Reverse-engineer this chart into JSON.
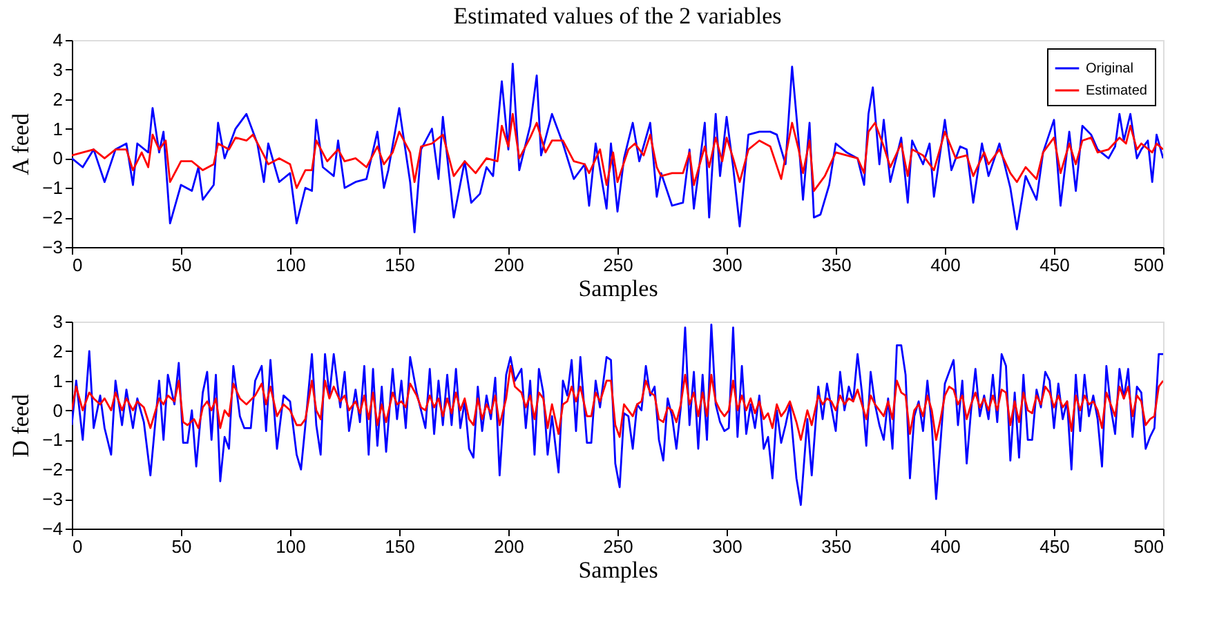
{
  "chart_data": [
    {
      "type": "line",
      "title": "Estimated values of the 2 variables",
      "xlabel": "Samples",
      "ylabel": "A feed",
      "xlim": [
        0,
        500
      ],
      "xticks": [
        0,
        50,
        100,
        150,
        200,
        250,
        300,
        350,
        400,
        450,
        500
      ],
      "ylim": [
        -3,
        4
      ],
      "yticks": [
        -3,
        -2,
        -1,
        0,
        1,
        2,
        3,
        4
      ],
      "grid": false,
      "legend": "top right",
      "marker": "none",
      "line_style": "solid",
      "series": [
        {
          "name": "Original",
          "color": "#0000ff",
          "x": [
            0,
            5,
            10,
            15,
            20,
            25,
            28,
            30,
            35,
            37,
            40,
            42,
            45,
            50,
            55,
            58,
            60,
            65,
            67,
            70,
            75,
            80,
            85,
            88,
            90,
            95,
            100,
            103,
            107,
            110,
            112,
            115,
            120,
            122,
            125,
            130,
            135,
            140,
            143,
            145,
            150,
            155,
            157,
            160,
            165,
            168,
            170,
            175,
            180,
            183,
            187,
            190,
            193,
            197,
            200,
            202,
            205,
            210,
            213,
            215,
            220,
            225,
            230,
            235,
            237,
            240,
            245,
            247,
            250,
            253,
            257,
            260,
            265,
            268,
            270,
            275,
            280,
            283,
            285,
            290,
            292,
            295,
            297,
            300,
            303,
            306,
            310,
            315,
            320,
            323,
            327,
            330,
            333,
            335,
            338,
            340,
            343,
            347,
            350,
            355,
            360,
            363,
            365,
            367,
            370,
            372,
            375,
            380,
            383,
            385,
            390,
            393,
            395,
            400,
            403,
            407,
            410,
            413,
            417,
            420,
            425,
            430,
            433,
            437,
            442,
            445,
            450,
            453,
            457,
            460,
            463,
            467,
            470,
            475,
            478,
            480,
            482,
            485,
            488,
            490,
            493,
            495,
            497,
            500
          ],
          "values": [
            0,
            -0.3,
            0.3,
            -0.8,
            0.3,
            0.5,
            -0.9,
            0.5,
            0.2,
            1.7,
            0.2,
            0.9,
            -2.2,
            -0.9,
            -1.1,
            -0.3,
            -1.4,
            -0.9,
            1.2,
            0.0,
            1.0,
            1.5,
            0.5,
            -0.8,
            0.5,
            -0.8,
            -0.5,
            -2.2,
            -1.0,
            -1.1,
            1.3,
            -0.3,
            -0.6,
            0.6,
            -1.0,
            -0.8,
            -0.7,
            0.9,
            -1.0,
            -0.4,
            1.7,
            -0.8,
            -2.5,
            0.3,
            1.0,
            -0.7,
            1.4,
            -2.0,
            -0.1,
            -1.5,
            -1.2,
            -0.3,
            -0.6,
            2.6,
            0.3,
            3.2,
            -0.4,
            1.1,
            2.8,
            0.1,
            1.5,
            0.5,
            -0.7,
            -0.2,
            -1.6,
            0.5,
            -1.7,
            0.5,
            -1.8,
            0.0,
            1.2,
            -0.1,
            1.2,
            -1.3,
            -0.5,
            -1.6,
            -1.5,
            0.3,
            -1.7,
            1.2,
            -2.0,
            1.5,
            -0.6,
            1.4,
            -0.3,
            -2.3,
            0.8,
            0.9,
            0.9,
            0.8,
            -0.2,
            3.1,
            0.6,
            -1.4,
            1.2,
            -2.0,
            -1.9,
            -0.9,
            0.5,
            0.2,
            0.0,
            -0.9,
            1.5,
            2.4,
            -0.2,
            1.3,
            -0.8,
            0.7,
            -1.5,
            0.6,
            -0.2,
            0.5,
            -1.3,
            1.3,
            -0.4,
            0.4,
            0.3,
            -1.5,
            0.5,
            -0.6,
            0.5,
            -1.0,
            -2.4,
            -0.6,
            -1.4,
            0.2,
            1.3,
            -1.6,
            0.9,
            -1.1,
            1.1,
            0.8,
            0.3,
            0.0,
            0.4,
            1.5,
            0.6,
            1.5,
            0.0,
            0.3,
            0.6,
            -0.8,
            0.8,
            0.0
          ]
        },
        {
          "name": "Estimated",
          "color": "#ff0000",
          "x": [
            0,
            5,
            10,
            15,
            20,
            25,
            28,
            32,
            35,
            37,
            40,
            43,
            45,
            50,
            55,
            60,
            65,
            67,
            72,
            75,
            80,
            83,
            88,
            90,
            95,
            100,
            103,
            107,
            110,
            112,
            117,
            122,
            125,
            130,
            135,
            140,
            143,
            147,
            150,
            155,
            157,
            160,
            165,
            170,
            175,
            180,
            185,
            190,
            195,
            197,
            200,
            202,
            205,
            210,
            213,
            217,
            220,
            225,
            230,
            235,
            237,
            242,
            245,
            248,
            250,
            255,
            258,
            262,
            265,
            268,
            270,
            275,
            280,
            283,
            285,
            290,
            292,
            295,
            298,
            300,
            303,
            306,
            310,
            315,
            320,
            325,
            330,
            333,
            335,
            338,
            340,
            345,
            350,
            355,
            360,
            363,
            365,
            368,
            372,
            375,
            380,
            383,
            385,
            390,
            395,
            400,
            405,
            410,
            413,
            418,
            420,
            425,
            430,
            433,
            437,
            442,
            445,
            450,
            453,
            457,
            460,
            463,
            467,
            470,
            475,
            480,
            483,
            485,
            488,
            490,
            495,
            497,
            500
          ],
          "values": [
            0.1,
            0.2,
            0.3,
            0.0,
            0.3,
            0.3,
            -0.4,
            0.2,
            -0.3,
            0.8,
            0.3,
            0.6,
            -0.8,
            -0.1,
            -0.1,
            -0.4,
            -0.2,
            0.5,
            0.3,
            0.7,
            0.6,
            0.8,
            0.1,
            -0.2,
            0.0,
            -0.2,
            -1.0,
            -0.4,
            -0.4,
            0.6,
            -0.1,
            0.3,
            -0.1,
            0.0,
            -0.3,
            0.4,
            -0.2,
            0.2,
            0.9,
            0.2,
            -0.8,
            0.4,
            0.5,
            0.8,
            -0.6,
            -0.1,
            -0.5,
            0.0,
            -0.1,
            1.1,
            0.4,
            1.5,
            0.0,
            0.7,
            1.2,
            0.2,
            0.6,
            0.6,
            -0.1,
            -0.2,
            -0.5,
            0.3,
            -0.9,
            0.2,
            -0.8,
            0.3,
            0.5,
            0.1,
            0.8,
            -0.3,
            -0.6,
            -0.5,
            -0.5,
            0.2,
            -0.9,
            0.4,
            -0.3,
            0.7,
            -0.1,
            0.7,
            0.0,
            -0.8,
            0.3,
            0.6,
            0.4,
            -0.7,
            1.2,
            0.3,
            -0.5,
            0.6,
            -1.1,
            -0.6,
            0.2,
            0.1,
            0.0,
            -0.5,
            0.9,
            1.2,
            0.4,
            -0.3,
            0.5,
            -0.6,
            0.3,
            0.1,
            -0.4,
            0.9,
            0.0,
            0.1,
            -0.6,
            0.2,
            -0.2,
            0.3,
            -0.5,
            -0.8,
            -0.3,
            -0.7,
            0.2,
            0.7,
            -0.5,
            0.5,
            -0.2,
            0.6,
            0.7,
            0.2,
            0.3,
            0.7,
            0.5,
            1.1,
            0.3,
            0.5,
            0.2,
            0.5,
            0.3
          ]
        }
      ]
    },
    {
      "type": "line",
      "xlabel": "Samples",
      "ylabel": "D feed",
      "xlim": [
        0,
        500
      ],
      "xticks": [
        0,
        50,
        100,
        150,
        200,
        250,
        300,
        350,
        400,
        450,
        500
      ],
      "ylim": [
        -4,
        3
      ],
      "yticks": [
        -4,
        -3,
        -2,
        -1,
        0,
        1,
        2,
        3
      ],
      "grid": false,
      "legend": false,
      "marker": "none",
      "line_style": "solid",
      "series": [
        {
          "color": "#0000ff",
          "x": [
            0,
            2,
            5,
            8,
            10,
            13,
            15,
            18,
            20,
            23,
            25,
            28,
            30,
            33,
            36,
            40,
            42,
            44,
            47,
            49,
            51,
            53,
            55,
            57,
            60,
            62,
            64,
            66,
            68,
            70,
            72,
            74,
            77,
            79,
            82,
            84,
            87,
            89,
            91,
            94,
            97,
            100,
            103,
            105,
            107,
            110,
            112,
            114,
            116,
            118,
            120,
            123,
            125,
            127,
            130,
            132,
            134,
            136,
            138,
            140,
            142,
            144,
            147,
            149,
            151,
            153,
            155,
            158,
            160,
            162,
            164,
            166,
            168,
            170,
            172,
            174,
            176,
            178,
            180,
            182,
            184,
            186,
            188,
            190,
            192,
            194,
            196,
            199,
            201,
            203,
            206,
            208,
            210,
            212,
            214,
            216,
            218,
            220,
            223,
            225,
            227,
            229,
            231,
            233,
            236,
            238,
            240,
            242,
            245,
            247,
            249,
            251,
            253,
            255,
            257,
            259,
            261,
            263,
            265,
            267,
            269,
            271,
            273,
            275,
            277,
            279,
            281,
            283,
            285,
            287,
            289,
            291,
            293,
            295,
            297,
            299,
            301,
            303,
            305,
            307,
            309,
            311,
            313,
            315,
            317,
            319,
            321,
            323,
            325,
            327,
            329,
            332,
            334,
            337,
            339,
            342,
            344,
            346,
            348,
            350,
            352,
            354,
            356,
            358,
            360,
            362,
            364,
            366,
            368,
            370,
            372,
            374,
            376,
            378,
            380,
            382,
            384,
            386,
            388,
            390,
            392,
            394,
            396,
            398,
            400,
            402,
            404,
            406,
            408,
            410,
            412,
            414,
            416,
            418,
            420,
            422,
            424,
            426,
            428,
            430,
            432,
            434,
            436,
            438,
            440,
            442,
            444,
            446,
            448,
            450,
            452,
            454,
            456,
            458,
            460,
            462,
            464,
            466,
            468,
            470,
            472,
            474,
            476,
            478,
            480,
            482,
            484,
            486,
            488,
            490,
            492,
            494,
            496,
            498,
            500
          ],
          "values": [
            -0.5,
            1.0,
            -1.0,
            2.0,
            -0.6,
            0.5,
            -0.6,
            -1.5,
            1.0,
            -0.5,
            0.7,
            -0.6,
            0.4,
            -0.4,
            -2.2,
            1.0,
            -1.0,
            1.2,
            0.2,
            1.6,
            -1.1,
            -1.1,
            0.0,
            -1.9,
            0.6,
            1.3,
            -1.0,
            1.2,
            -2.4,
            -0.9,
            -1.3,
            1.5,
            -0.2,
            -0.6,
            -0.6,
            1.0,
            1.5,
            -0.7,
            1.7,
            -1.3,
            0.5,
            0.3,
            -1.5,
            -2.0,
            -0.5,
            1.9,
            -0.5,
            -1.5,
            1.9,
            0.5,
            1.9,
            0.1,
            1.3,
            -0.7,
            0.7,
            -0.4,
            1.5,
            -1.5,
            1.4,
            -1.2,
            0.8,
            -1.4,
            1.4,
            -0.3,
            1.0,
            -0.6,
            1.8,
            0.6,
            0.0,
            -0.6,
            1.4,
            -0.8,
            1.0,
            -0.5,
            1.2,
            -0.5,
            1.4,
            -0.6,
            0.3,
            -1.3,
            -1.6,
            0.8,
            -0.7,
            0.5,
            -0.3,
            1.1,
            -2.2,
            1.2,
            1.8,
            1.0,
            1.4,
            -0.6,
            1.0,
            -1.5,
            1.4,
            0.6,
            -1.5,
            -0.2,
            -2.1,
            1.0,
            0.5,
            1.7,
            -0.7,
            1.8,
            -1.1,
            -1.1,
            1.0,
            0.1,
            1.8,
            1.7,
            -1.8,
            -2.6,
            -0.1,
            -0.2,
            -1.3,
            0.2,
            0.0,
            1.5,
            0.5,
            0.8,
            -1.0,
            -1.7,
            0.4,
            -0.2,
            -1.3,
            0.1,
            2.8,
            -0.5,
            1.3,
            -1.3,
            1.2,
            -1.0,
            2.9,
            0.2,
            -0.4,
            -0.7,
            -0.6,
            2.8,
            -0.9,
            1.5,
            -0.8,
            0.2,
            -0.6,
            0.5,
            -1.3,
            -0.9,
            -2.3,
            0.0,
            -1.1,
            -0.5,
            0.2,
            -2.3,
            -3.2,
            -0.3,
            -2.2,
            0.8,
            -0.3,
            0.9,
            0.1,
            -0.7,
            1.3,
            0.0,
            0.8,
            0.3,
            1.9,
            0.6,
            -1.2,
            1.3,
            0.2,
            -0.5,
            -1.0,
            0.4,
            -1.3,
            2.2,
            2.2,
            1.2,
            -2.3,
            -0.2,
            0.3,
            -0.7,
            1.0,
            -0.5,
            -3.0,
            -1.1,
            0.9,
            1.3,
            1.7,
            -0.5,
            1.0,
            -1.8,
            0.0,
            1.4,
            -0.2,
            0.5,
            -0.3,
            1.2,
            -0.4,
            1.9,
            1.5,
            -1.7,
            0.6,
            -1.6,
            1.2,
            -1.0,
            -1.0,
            0.7,
            0.1,
            1.3,
            1.0,
            -0.6,
            0.9,
            -0.3,
            0.3,
            -2.0,
            1.2,
            -0.7,
            1.2,
            -0.2,
            0.5,
            -0.3,
            -1.9,
            1.5,
            0.1,
            -0.8,
            1.4,
            0.4,
            1.4,
            -0.9,
            0.8,
            0.6,
            -1.3,
            -0.9,
            -0.6,
            1.9,
            1.9
          ]
        },
        {
          "color": "#ff0000",
          "x": [
            0,
            2,
            5,
            8,
            10,
            13,
            15,
            18,
            20,
            23,
            25,
            28,
            30,
            33,
            36,
            40,
            42,
            44,
            47,
            49,
            51,
            53,
            56,
            58,
            60,
            62,
            64,
            66,
            68,
            70,
            72,
            74,
            77,
            80,
            84,
            87,
            89,
            91,
            94,
            97,
            100,
            103,
            105,
            107,
            110,
            112,
            114,
            116,
            118,
            120,
            123,
            125,
            127,
            130,
            132,
            134,
            136,
            138,
            140,
            142,
            144,
            147,
            149,
            151,
            153,
            155,
            158,
            160,
            162,
            164,
            166,
            168,
            170,
            172,
            174,
            176,
            178,
            180,
            182,
            184,
            186,
            188,
            190,
            192,
            194,
            196,
            199,
            201,
            203,
            206,
            208,
            210,
            212,
            214,
            216,
            218,
            220,
            223,
            225,
            227,
            229,
            231,
            233,
            236,
            238,
            240,
            242,
            245,
            247,
            249,
            251,
            253,
            255,
            257,
            259,
            261,
            263,
            265,
            267,
            269,
            271,
            273,
            275,
            277,
            279,
            281,
            283,
            285,
            287,
            289,
            291,
            293,
            295,
            297,
            299,
            301,
            303,
            305,
            307,
            309,
            311,
            313,
            315,
            317,
            319,
            321,
            323,
            325,
            327,
            329,
            332,
            334,
            337,
            339,
            342,
            344,
            346,
            348,
            350,
            352,
            354,
            356,
            358,
            360,
            362,
            364,
            366,
            368,
            370,
            372,
            374,
            376,
            378,
            380,
            382,
            384,
            386,
            388,
            390,
            392,
            394,
            396,
            398,
            400,
            402,
            404,
            406,
            408,
            410,
            412,
            414,
            416,
            418,
            420,
            422,
            424,
            426,
            428,
            430,
            432,
            434,
            436,
            438,
            440,
            442,
            444,
            446,
            448,
            450,
            452,
            454,
            456,
            458,
            460,
            462,
            464,
            466,
            468,
            470,
            472,
            474,
            476,
            478,
            480,
            482,
            484,
            486,
            488,
            490,
            492,
            494,
            496,
            498,
            500
          ],
          "values": [
            0.0,
            0.8,
            0.0,
            0.6,
            0.4,
            0.2,
            0.4,
            0.0,
            0.6,
            0.0,
            0.4,
            0.0,
            0.3,
            0.1,
            -0.6,
            0.4,
            0.2,
            0.5,
            0.3,
            1.0,
            -0.4,
            -0.5,
            -0.3,
            -0.6,
            0.1,
            0.3,
            0.0,
            0.4,
            -0.6,
            0.0,
            -0.2,
            0.9,
            0.4,
            0.2,
            0.5,
            0.9,
            0.2,
            0.8,
            -0.2,
            0.2,
            0.0,
            -0.5,
            -0.5,
            -0.3,
            1.0,
            0.0,
            -0.3,
            1.0,
            0.4,
            0.8,
            0.3,
            0.5,
            0.0,
            0.3,
            -0.1,
            0.5,
            -0.3,
            0.6,
            -0.5,
            0.2,
            -0.4,
            0.6,
            0.2,
            0.3,
            0.1,
            0.9,
            0.5,
            0.1,
            0.0,
            0.5,
            0.1,
            0.4,
            -0.2,
            0.4,
            -0.1,
            0.6,
            0.0,
            0.4,
            -0.3,
            -0.5,
            0.4,
            -0.3,
            0.2,
            -0.1,
            0.5,
            -0.5,
            0.4,
            1.5,
            0.8,
            0.6,
            0.1,
            0.5,
            -0.3,
            0.6,
            0.4,
            -0.6,
            0.2,
            -0.8,
            0.2,
            0.3,
            0.8,
            0.3,
            0.8,
            -0.2,
            -0.2,
            0.6,
            0.3,
            1.0,
            1.0,
            -0.5,
            -0.9,
            0.2,
            0.0,
            -0.2,
            0.2,
            0.3,
            1.0,
            0.6,
            0.5,
            -0.3,
            -0.4,
            0.1,
            0.0,
            -0.4,
            0.2,
            1.2,
            0.2,
            0.6,
            -0.2,
            0.6,
            -0.2,
            1.2,
            0.3,
            0.0,
            -0.2,
            0.0,
            1.0,
            0.0,
            0.5,
            0.0,
            0.4,
            -0.1,
            0.3,
            -0.3,
            -0.1,
            -0.6,
            0.2,
            -0.2,
            0.0,
            0.3,
            -0.4,
            -1.0,
            0.0,
            -0.5,
            0.5,
            0.2,
            0.4,
            0.3,
            0.0,
            0.5,
            0.2,
            0.4,
            0.3,
            0.7,
            0.2,
            -0.3,
            0.5,
            0.2,
            0.0,
            -0.2,
            0.3,
            -0.3,
            1.0,
            0.6,
            0.5,
            -0.8,
            0.0,
            0.2,
            -0.2,
            0.5,
            0.0,
            -1.0,
            -0.3,
            0.5,
            0.8,
            0.7,
            0.2,
            0.5,
            -0.3,
            0.2,
            0.6,
            0.1,
            0.4,
            0.0,
            0.5,
            0.0,
            0.7,
            0.6,
            -0.5,
            0.3,
            -0.4,
            0.6,
            0.0,
            -0.1,
            0.5,
            0.2,
            0.8,
            0.6,
            0.1,
            0.5,
            0.1,
            0.3,
            -0.7,
            0.5,
            0.0,
            0.5,
            0.2,
            0.3,
            0.0,
            -0.6,
            0.6,
            0.2,
            -0.2,
            0.8,
            0.4,
            0.8,
            -0.2,
            0.5,
            0.3,
            -0.5,
            -0.3,
            -0.2,
            0.8,
            1.0
          ]
        }
      ]
    }
  ]
}
